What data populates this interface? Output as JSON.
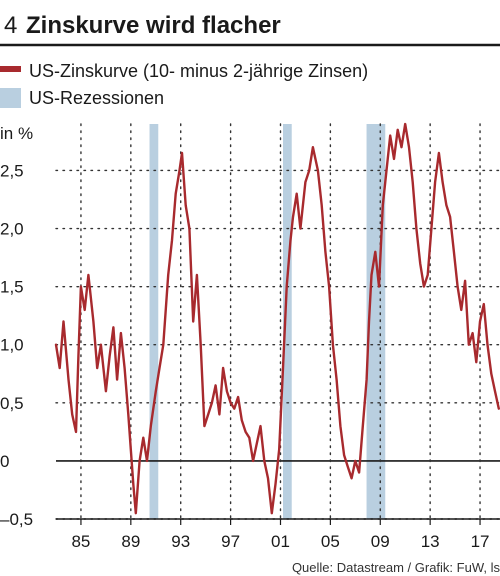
{
  "figure": {
    "number": "4",
    "title": "Zinskurve wird flacher",
    "source": "Quelle: Datastream / Grafik: FuW, ls"
  },
  "colors": {
    "line": "#a82a2e",
    "recession": "#b9cfe0",
    "rule": "#1a1a1a",
    "grid": "#333333"
  },
  "chart_data": {
    "type": "line",
    "ylabel": "in %",
    "ylim": [
      -0.5,
      2.9
    ],
    "xlim": [
      1983.0,
      2018.6
    ],
    "yticks": [
      -0.5,
      0,
      0.5,
      1.0,
      1.5,
      2.0,
      2.5
    ],
    "ytick_labels": [
      "–0,5",
      "0",
      "0,5",
      "1,0",
      "1,5",
      "2,0",
      "2,5"
    ],
    "xticks": [
      1985,
      1989,
      1993,
      1997,
      2001,
      2005,
      2009,
      2013,
      2017
    ],
    "xtick_labels": [
      "85",
      "89",
      "93",
      "97",
      "01",
      "05",
      "09",
      "13",
      "17"
    ],
    "legend": [
      {
        "label": "US-Zinskurve (10- minus 2-jährige Zinsen)",
        "type": "line"
      },
      {
        "label": "US-Rezessionen",
        "type": "band"
      }
    ],
    "recessions": [
      [
        1990.5,
        1991.2
      ],
      [
        2001.2,
        2001.9
      ],
      [
        2007.9,
        2009.4
      ]
    ],
    "series": [
      {
        "name": "US-Zinskurve (10- minus 2-jährige Zinsen)",
        "x": [
          1983.0,
          1983.3,
          1983.6,
          1984.0,
          1984.3,
          1984.6,
          1984.8,
          1985.0,
          1985.3,
          1985.6,
          1986.0,
          1986.3,
          1986.6,
          1987.0,
          1987.3,
          1987.6,
          1987.9,
          1988.2,
          1988.5,
          1988.8,
          1989.0,
          1989.2,
          1989.4,
          1989.7,
          1990.0,
          1990.3,
          1990.6,
          1991.0,
          1991.3,
          1991.6,
          1992.0,
          1992.3,
          1992.6,
          1992.9,
          1993.1,
          1993.4,
          1993.7,
          1994.0,
          1994.3,
          1994.6,
          1994.9,
          1995.2,
          1995.5,
          1995.8,
          1996.1,
          1996.4,
          1996.7,
          1997.0,
          1997.3,
          1997.6,
          1997.9,
          1998.2,
          1998.5,
          1998.8,
          1999.1,
          1999.4,
          1999.7,
          2000.0,
          2000.3,
          2000.6,
          2000.9,
          2001.2,
          2001.5,
          2001.8,
          2002.0,
          2002.3,
          2002.6,
          2003.0,
          2003.3,
          2003.6,
          2004.0,
          2004.3,
          2004.6,
          2004.9,
          2005.2,
          2005.5,
          2005.8,
          2006.1,
          2006.4,
          2006.7,
          2007.0,
          2007.3,
          2007.6,
          2007.9,
          2008.1,
          2008.3,
          2008.6,
          2008.9,
          2009.2,
          2009.5,
          2009.8,
          2010.1,
          2010.4,
          2010.7,
          2011.0,
          2011.3,
          2011.6,
          2011.9,
          2012.2,
          2012.5,
          2012.8,
          2013.1,
          2013.4,
          2013.7,
          2014.0,
          2014.3,
          2014.6,
          2014.9,
          2015.2,
          2015.5,
          2015.8,
          2016.1,
          2016.4,
          2016.7,
          2017.0,
          2017.3,
          2017.6,
          2017.9,
          2018.2,
          2018.5
        ],
        "values": [
          1.0,
          0.8,
          1.2,
          0.7,
          0.4,
          0.25,
          0.9,
          1.5,
          1.3,
          1.6,
          1.2,
          0.8,
          1.0,
          0.6,
          0.9,
          1.15,
          0.7,
          1.1,
          0.8,
          0.4,
          0.1,
          -0.2,
          -0.45,
          0.0,
          0.2,
          0.0,
          0.3,
          0.6,
          0.8,
          1.0,
          1.6,
          1.9,
          2.3,
          2.5,
          2.65,
          2.2,
          2.0,
          1.2,
          1.6,
          1.0,
          0.3,
          0.4,
          0.5,
          0.65,
          0.4,
          0.8,
          0.6,
          0.5,
          0.45,
          0.55,
          0.35,
          0.25,
          0.2,
          0.0,
          0.15,
          0.3,
          0.0,
          -0.15,
          -0.45,
          -0.2,
          0.1,
          0.8,
          1.5,
          1.9,
          2.1,
          2.3,
          2.0,
          2.4,
          2.5,
          2.7,
          2.5,
          2.2,
          1.8,
          1.5,
          1.0,
          0.7,
          0.3,
          0.05,
          -0.05,
          -0.15,
          0.0,
          -0.1,
          0.3,
          0.7,
          1.2,
          1.6,
          1.8,
          1.5,
          2.2,
          2.5,
          2.8,
          2.6,
          2.85,
          2.7,
          2.9,
          2.7,
          2.4,
          2.0,
          1.7,
          1.5,
          1.6,
          2.0,
          2.4,
          2.65,
          2.4,
          2.2,
          2.1,
          1.8,
          1.5,
          1.3,
          1.55,
          1.0,
          1.1,
          0.85,
          1.2,
          1.35,
          1.0,
          0.75,
          0.6,
          0.45
        ]
      }
    ]
  }
}
